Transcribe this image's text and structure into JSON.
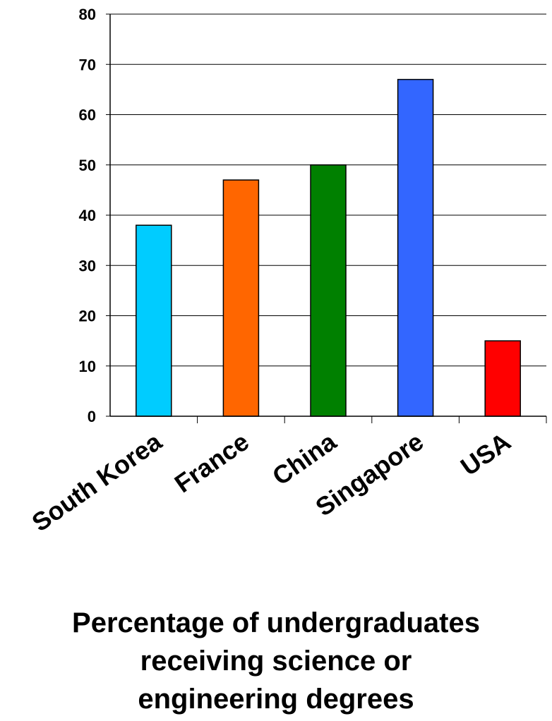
{
  "chart_data": {
    "type": "bar",
    "categories": [
      "South Korea",
      "France",
      "China",
      "Singapore",
      "USA"
    ],
    "values": [
      38,
      47,
      50,
      67,
      15
    ],
    "colors": [
      "#00ccff",
      "#ff6600",
      "#008000",
      "#3366ff",
      "#ff0000"
    ],
    "ylim": [
      0,
      80
    ],
    "yticks": [
      "0",
      "10",
      "20",
      "30",
      "40",
      "50",
      "60",
      "70",
      "80"
    ],
    "grid": true,
    "legend": "none",
    "caption_lines": [
      "Percentage of undergraduates",
      "receiving science or",
      "engineering degrees"
    ]
  }
}
